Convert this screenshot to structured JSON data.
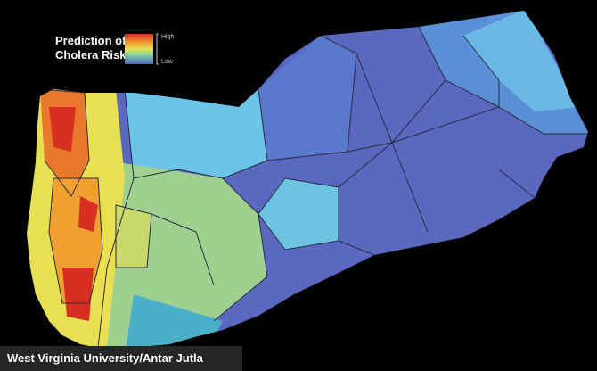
{
  "legend": {
    "title_lines": [
      "Prediction of",
      "Cholera Risk"
    ],
    "high": "High",
    "low": "Low"
  },
  "credit": "West Virginia University/Antar Jutla"
}
